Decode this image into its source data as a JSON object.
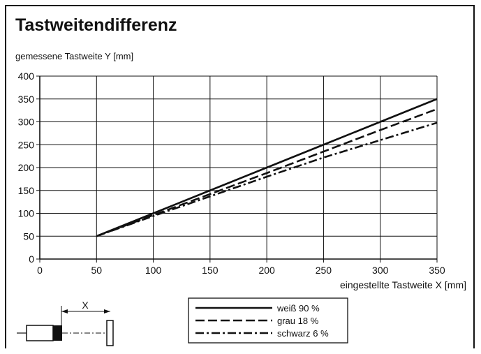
{
  "chart_data": {
    "type": "line",
    "title": "Tastweitendifferenz",
    "ylabel": "gemessene Tastweite Y [mm]",
    "xlabel": "eingestellte Tastweite X [mm]",
    "xlim": [
      0,
      350
    ],
    "ylim": [
      0,
      400
    ],
    "xticks": [
      "0",
      "50",
      "100",
      "150",
      "200",
      "250",
      "300",
      "350"
    ],
    "yticks": [
      "0",
      "50",
      "100",
      "150",
      "200",
      "250",
      "300",
      "350",
      "400"
    ],
    "grid": true,
    "legend_position": "bottom-center",
    "x": [
      50,
      100,
      150,
      200,
      250,
      300,
      350
    ],
    "series": [
      {
        "name": "weiß 90 %",
        "style": "solid",
        "values": [
          50,
          100,
          150,
          200,
          250,
          300,
          350
        ]
      },
      {
        "name": "grau 18 %",
        "style": "dashed",
        "values": [
          50,
          96,
          142,
          188,
          235,
          282,
          328
        ]
      },
      {
        "name": "schwarz 6 %",
        "style": "dashdot",
        "values": [
          50,
          94,
          137,
          180,
          222,
          260,
          298
        ]
      }
    ]
  },
  "diagram": {
    "x_label": "X"
  }
}
